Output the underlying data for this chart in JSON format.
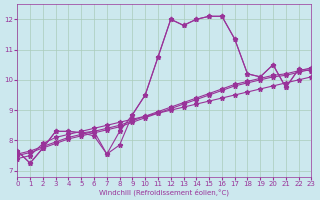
{
  "xlabel": "Windchill (Refroidissement éolien,°C)",
  "bg_color": "#cce8ee",
  "grid_color": "#aaccbb",
  "line_color": "#993399",
  "xlim": [
    0,
    23
  ],
  "ylim": [
    6.8,
    12.5
  ],
  "yticks": [
    7,
    8,
    9,
    10,
    11,
    12
  ],
  "xticks": [
    0,
    1,
    2,
    3,
    4,
    5,
    6,
    7,
    8,
    9,
    10,
    11,
    12,
    13,
    14,
    15,
    16,
    17,
    18,
    19,
    20,
    21,
    22,
    23
  ],
  "series": [
    [
      7.65,
      7.25,
      7.75,
      8.3,
      8.3,
      8.25,
      8.3,
      7.55,
      8.3,
      8.85,
      9.5,
      10.75,
      12.0,
      11.8,
      12.0,
      12.1,
      12.1,
      11.35,
      10.2,
      10.1,
      10.5,
      9.75,
      10.35,
      10.3
    ],
    [
      7.65,
      7.25,
      7.75,
      8.3,
      8.3,
      8.25,
      8.15,
      7.55,
      7.85,
      8.85,
      9.5,
      10.75,
      12.0,
      11.8,
      12.0,
      12.1,
      12.1,
      11.35,
      10.2,
      10.1,
      10.5,
      9.75,
      10.35,
      10.3
    ],
    [
      7.4,
      7.5,
      7.9,
      8.1,
      8.2,
      8.3,
      8.4,
      8.5,
      8.6,
      8.7,
      8.8,
      8.9,
      9.0,
      9.1,
      9.2,
      9.3,
      9.4,
      9.5,
      9.6,
      9.7,
      9.8,
      9.9,
      10.0,
      10.1
    ],
    [
      7.5,
      7.6,
      7.75,
      7.9,
      8.05,
      8.15,
      8.25,
      8.35,
      8.45,
      8.6,
      8.75,
      8.9,
      9.05,
      9.2,
      9.35,
      9.5,
      9.65,
      9.8,
      9.9,
      10.0,
      10.1,
      10.15,
      10.25,
      10.35
    ],
    [
      7.55,
      7.65,
      7.8,
      7.95,
      8.1,
      8.2,
      8.3,
      8.4,
      8.5,
      8.65,
      8.8,
      8.95,
      9.1,
      9.25,
      9.4,
      9.55,
      9.7,
      9.85,
      9.95,
      10.05,
      10.15,
      10.2,
      10.3,
      10.4
    ]
  ]
}
